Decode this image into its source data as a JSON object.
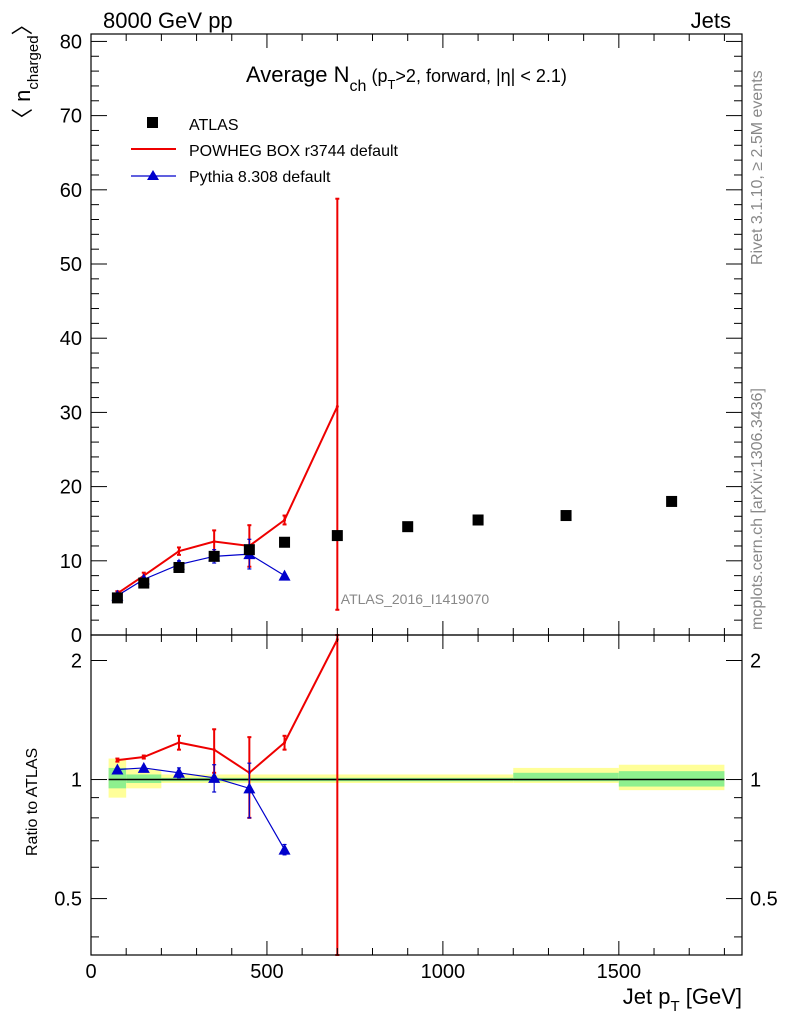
{
  "header": {
    "left": "8000 GeV pp",
    "right": "Jets"
  },
  "side_labels": {
    "rivet": "Rivet 3.1.10, ≥ 2.5M events",
    "mcplots": "mcplots.cern.ch [arXiv:1306.3436]"
  },
  "watermark": "ATLAS_2016_I1419070",
  "title": {
    "main": "Average N",
    "sub": "ch",
    "rest_a": " (p",
    "rest_sub": "T",
    "rest_b": ">2, forward, |η| < 2.1)"
  },
  "legend": {
    "atlas": "ATLAS",
    "powheg": "POWHEG BOX r3744 default",
    "pythia": "Pythia 8.308 default"
  },
  "colors": {
    "atlas": "#000000",
    "powheg": "#ee0000",
    "pythia": "#0000cc",
    "band_green": "#8ef08e",
    "band_yellow": "#ffff99"
  },
  "axes": {
    "ylabel_top_a": "〈 n",
    "ylabel_top_sub": "charged",
    "ylabel_top_b": "〉",
    "ylabel_bottom": "Ratio to ATLAS",
    "xlabel_a": "Jet p",
    "xlabel_sub": "T",
    "xlabel_b": " [GeV]"
  },
  "chart_data": [
    {
      "type": "scatter",
      "panel": "main",
      "xlim": [
        0,
        1850
      ],
      "ylim": [
        0,
        81
      ],
      "yticks": [
        0,
        10,
        20,
        30,
        40,
        50,
        60,
        70,
        80
      ],
      "xticks": [
        0,
        500,
        1000,
        1500
      ],
      "series": [
        {
          "name": "ATLAS",
          "style": "markers",
          "x": [
            75,
            150,
            250,
            350,
            450,
            550,
            700,
            900,
            1100,
            1350,
            1650
          ],
          "y": [
            5.0,
            7.0,
            9.1,
            10.6,
            11.5,
            12.5,
            13.4,
            14.6,
            15.5,
            16.1,
            18.0
          ]
        },
        {
          "name": "POWHEG BOX r3744 default",
          "style": "line",
          "x": [
            75,
            150,
            250,
            350,
            450,
            550,
            700
          ],
          "y": [
            5.6,
            8.0,
            11.3,
            12.6,
            12.0,
            15.5,
            30.8
          ],
          "err_lo": [
            0.3,
            0.4,
            0.5,
            1.5,
            2.8,
            0.6,
            27.4
          ],
          "err_hi": [
            0.3,
            0.4,
            0.5,
            1.5,
            2.8,
            0.6,
            28.0
          ]
        },
        {
          "name": "Pythia 8.308 default",
          "style": "line-triangles",
          "x": [
            75,
            150,
            250,
            350,
            450,
            550
          ],
          "y": [
            5.3,
            7.5,
            9.5,
            10.6,
            10.9,
            8.0
          ],
          "err_lo": [
            0.2,
            0.3,
            0.5,
            0.9,
            2.0,
            0.2
          ],
          "err_hi": [
            0.2,
            0.3,
            0.5,
            0.9,
            2.0,
            0.2
          ]
        }
      ]
    },
    {
      "type": "line",
      "panel": "ratio",
      "xlim": [
        0,
        1850
      ],
      "ylim": [
        0.36,
        2.32
      ],
      "yscale": "log",
      "yticks": [
        0.5,
        1,
        2
      ],
      "bands": [
        {
          "x0": 50,
          "x1": 100,
          "g_lo": 0.95,
          "g_hi": 1.07,
          "y_lo": 0.9,
          "y_hi": 1.13
        },
        {
          "x0": 100,
          "x1": 200,
          "g_lo": 0.98,
          "g_hi": 1.03,
          "y_lo": 0.95,
          "y_hi": 1.06
        },
        {
          "x0": 200,
          "x1": 1200,
          "g_lo": 0.99,
          "g_hi": 1.01,
          "y_lo": 0.98,
          "y_hi": 1.03
        },
        {
          "x0": 1200,
          "x1": 1500,
          "g_lo": 0.99,
          "g_hi": 1.04,
          "y_lo": 0.98,
          "y_hi": 1.07
        },
        {
          "x0": 1500,
          "x1": 1800,
          "g_lo": 0.96,
          "g_hi": 1.05,
          "y_lo": 0.94,
          "y_hi": 1.09
        }
      ],
      "series": [
        {
          "name": "POWHEG BOX r3744 default",
          "x": [
            75,
            150,
            250,
            350,
            450,
            550,
            700
          ],
          "y": [
            1.12,
            1.14,
            1.24,
            1.19,
            1.04,
            1.24,
            2.26
          ],
          "err_lo": [
            0.01,
            0.01,
            0.05,
            0.15,
            0.24,
            0.05,
            1.9
          ],
          "err_hi": [
            0.01,
            0.01,
            0.05,
            0.15,
            0.24,
            0.05,
            0.06
          ]
        },
        {
          "name": "Pythia 8.308 default",
          "x": [
            75,
            150,
            250,
            350,
            450,
            550
          ],
          "y": [
            1.06,
            1.07,
            1.04,
            1.01,
            0.95,
            0.665
          ],
          "err_lo": [
            0.01,
            0.01,
            0.03,
            0.08,
            0.15,
            0.02
          ],
          "err_hi": [
            0.01,
            0.01,
            0.03,
            0.08,
            0.15,
            0.02
          ]
        }
      ]
    }
  ]
}
